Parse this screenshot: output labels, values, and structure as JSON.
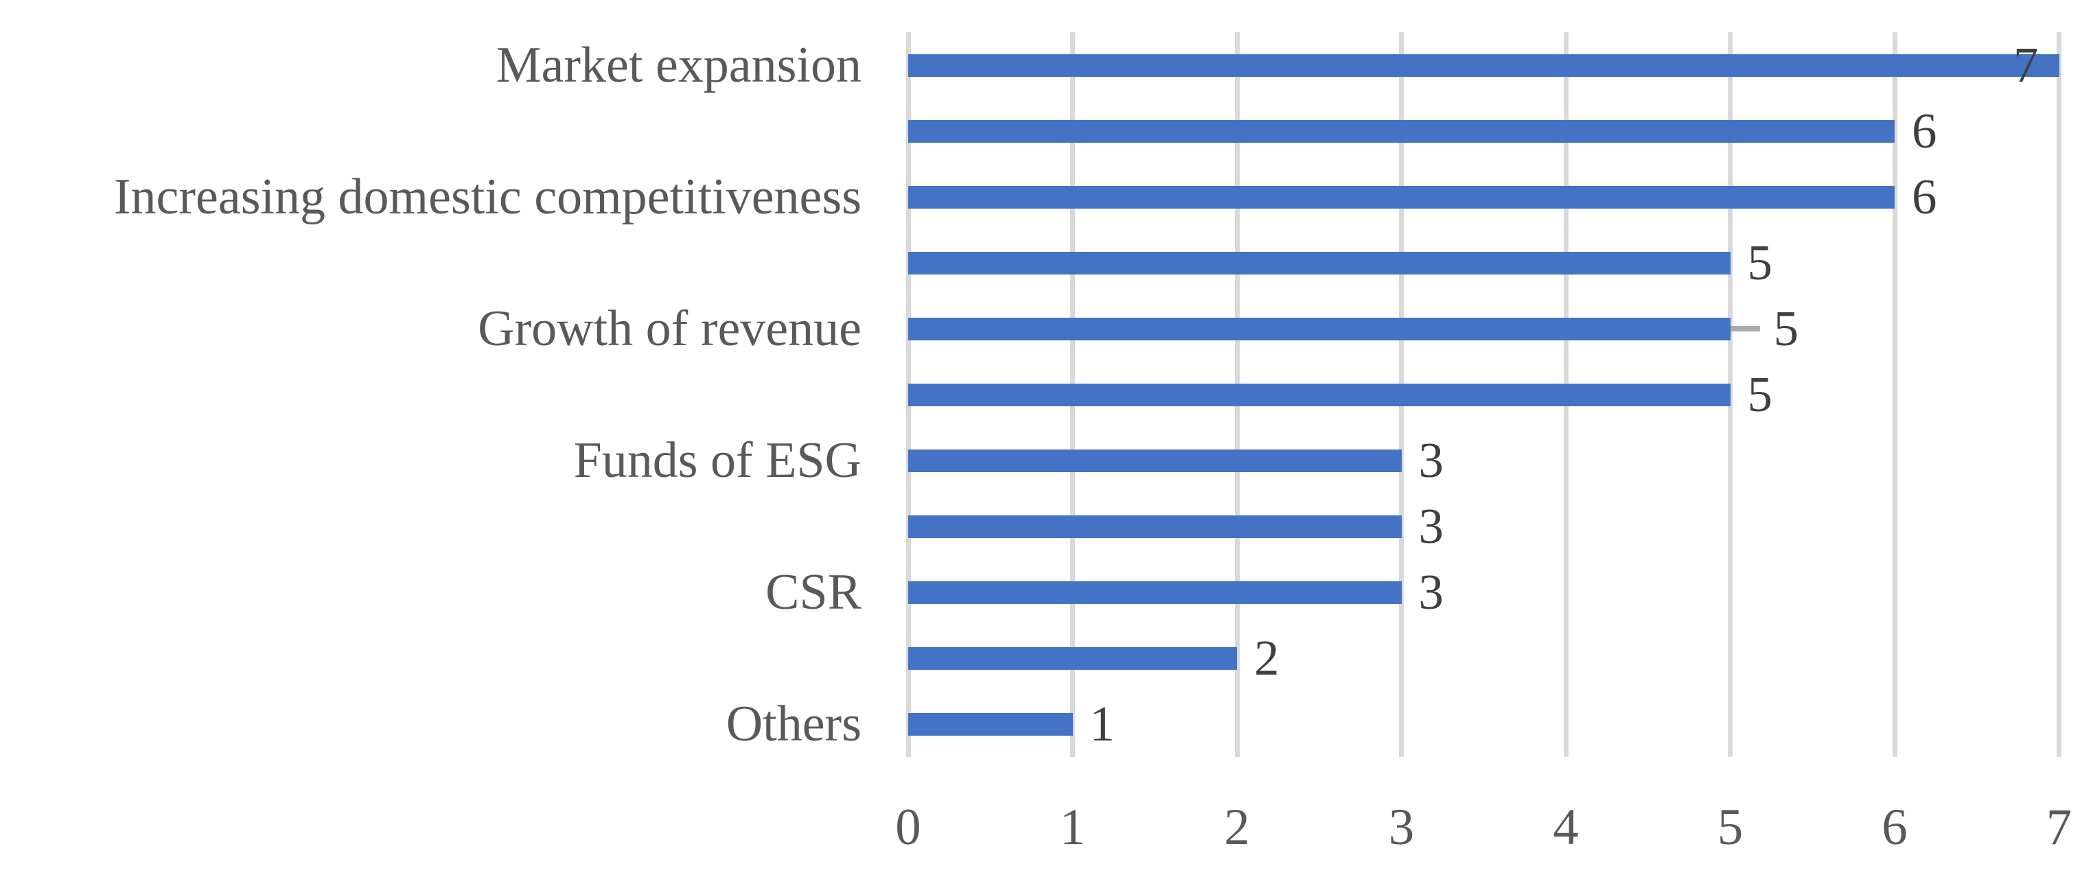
{
  "chart_data": {
    "type": "bar",
    "orientation": "horizontal",
    "title": "",
    "xlabel": "",
    "ylabel": "",
    "categories": [
      "Market expansion",
      "",
      "Increasing domestic competitiveness",
      "",
      "Growth of revenue",
      "",
      "Funds of ESG",
      "",
      "CSR",
      "",
      "Others"
    ],
    "values": [
      7,
      6,
      6,
      5,
      5,
      5,
      3,
      3,
      3,
      2,
      1
    ],
    "data_labels": [
      "7",
      "6",
      "6",
      "5",
      "5",
      "5",
      "3",
      "3",
      "3",
      "2",
      "1"
    ],
    "x_ticks": [
      "0",
      "1",
      "2",
      "3",
      "4",
      "5",
      "6",
      "7"
    ],
    "xlim": [
      0,
      7
    ],
    "grid": "vertical-only",
    "legend": "none",
    "first_bar_label_inside": true,
    "error_bar": {
      "row_index": 4,
      "extent_units": 0.18
    },
    "colors": {
      "bar": "#4472C4",
      "gridline": "#D9D9D9",
      "category_label": "#595959",
      "tick_label": "#595959",
      "data_label": "#3F3F3F",
      "error_whisker": "#ABABAB",
      "background": "#FFFFFF"
    }
  }
}
